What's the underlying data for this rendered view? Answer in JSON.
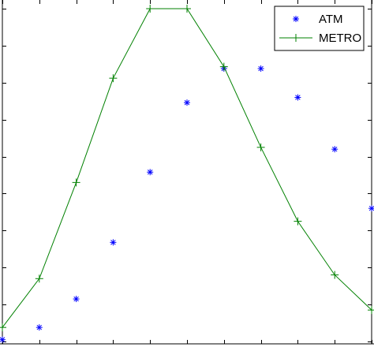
{
  "chart_data": {
    "type": "line",
    "x": [
      0,
      1,
      2,
      3,
      4,
      5,
      6,
      7,
      8,
      9,
      10
    ],
    "xlim": [
      0,
      10
    ],
    "ylim": [
      0,
      9
    ],
    "series": [
      {
        "name": "ATM",
        "style": "markers",
        "marker": "asterisk",
        "color": "#0000ff",
        "values": [
          0.05,
          0.38,
          1.15,
          2.68,
          4.58,
          6.46,
          7.38,
          7.38,
          6.6,
          5.2,
          3.6
        ]
      },
      {
        "name": "METRO",
        "style": "line+markers",
        "marker": "plus",
        "color": "#008000",
        "values": [
          0.38,
          1.7,
          4.3,
          7.12,
          9.0,
          9.0,
          7.43,
          5.25,
          3.25,
          1.8,
          0.85
        ]
      }
    ],
    "legend": {
      "position": "top-right"
    },
    "grid": false
  }
}
